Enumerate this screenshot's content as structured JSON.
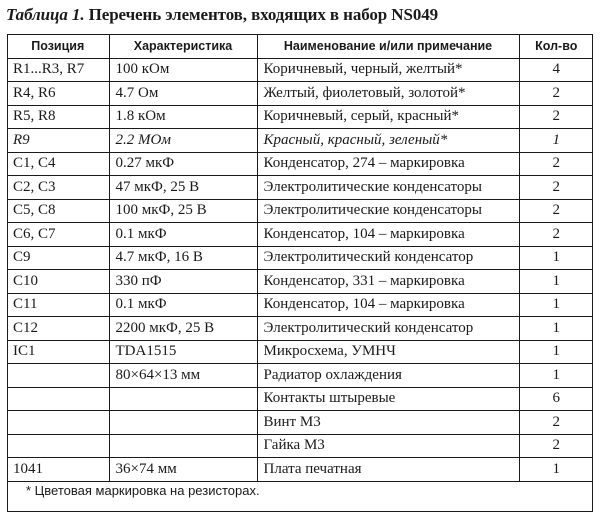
{
  "caption": {
    "lead": "Таблица 1.",
    "text": "Перечень элементов, входящих в набор NS049"
  },
  "table": {
    "headers": [
      "Позиция",
      "Характеристика",
      "Наименование и/или примечание",
      "Кол-во"
    ],
    "rows": [
      {
        "pos": "R1...R3, R7",
        "spec": "100 кОм",
        "name": "Коричневый, черный, желтый*",
        "qty": "4",
        "italic": false
      },
      {
        "pos": "R4, R6",
        "spec": "4.7 Ом",
        "name": "Желтый, фиолетовый, золотой*",
        "qty": "2",
        "italic": false
      },
      {
        "pos": "R5, R8",
        "spec": "1.8 кОм",
        "name": "Коричневый, серый, красный*",
        "qty": "2",
        "italic": false
      },
      {
        "pos": "R9",
        "spec": "2.2 МОм",
        "name": "Красный, красный, зеленый*",
        "qty": "1",
        "italic": true
      },
      {
        "pos": "C1, C4",
        "spec": "0.27 мкФ",
        "name": "Конденсатор, 274 – маркировка",
        "qty": "2",
        "italic": false
      },
      {
        "pos": "C2, C3",
        "spec": "47 мкФ, 25 В",
        "name": "Электролитические конденсаторы",
        "qty": "2",
        "italic": false
      },
      {
        "pos": "C5, C8",
        "spec": "100 мкФ, 25 В",
        "name": "Электролитические конденсаторы",
        "qty": "2",
        "italic": false
      },
      {
        "pos": "C6, C7",
        "spec": "0.1 мкФ",
        "name": "Конденсатор, 104 – маркировка",
        "qty": "2",
        "italic": false
      },
      {
        "pos": "C9",
        "spec": "4.7 мкФ, 16 В",
        "name": "Электролитический конденсатор",
        "qty": "1",
        "italic": false
      },
      {
        "pos": "C10",
        "spec": "330 пФ",
        "name": "Конденсатор, 331 – маркировка",
        "qty": "1",
        "italic": false
      },
      {
        "pos": "C11",
        "spec": "0.1 мкФ",
        "name": "Конденсатор, 104 – маркировка",
        "qty": "1",
        "italic": false
      },
      {
        "pos": "C12",
        "spec": "2200 мкФ, 25 В",
        "name": "Электролитический конденсатор",
        "qty": "1",
        "italic": false
      },
      {
        "pos": "IC1",
        "spec": "TDA1515",
        "name": "Микросхема, УМНЧ",
        "qty": "1",
        "italic": false
      },
      {
        "pos": "",
        "spec": "80×64×13 мм",
        "name": "Радиатор охлаждения",
        "qty": "1",
        "italic": false
      },
      {
        "pos": "",
        "spec": "",
        "name": "Контакты штыревые",
        "qty": "6",
        "italic": false
      },
      {
        "pos": "",
        "spec": "",
        "name": "Винт М3",
        "qty": "2",
        "italic": false
      },
      {
        "pos": "",
        "spec": "",
        "name": "Гайка М3",
        "qty": "2",
        "italic": false
      },
      {
        "pos": "1041",
        "spec": "36×74 мм",
        "name": "Плата печатная",
        "qty": "1",
        "italic": false
      }
    ]
  },
  "footnote": "* Цветовая маркировка на резисторах."
}
